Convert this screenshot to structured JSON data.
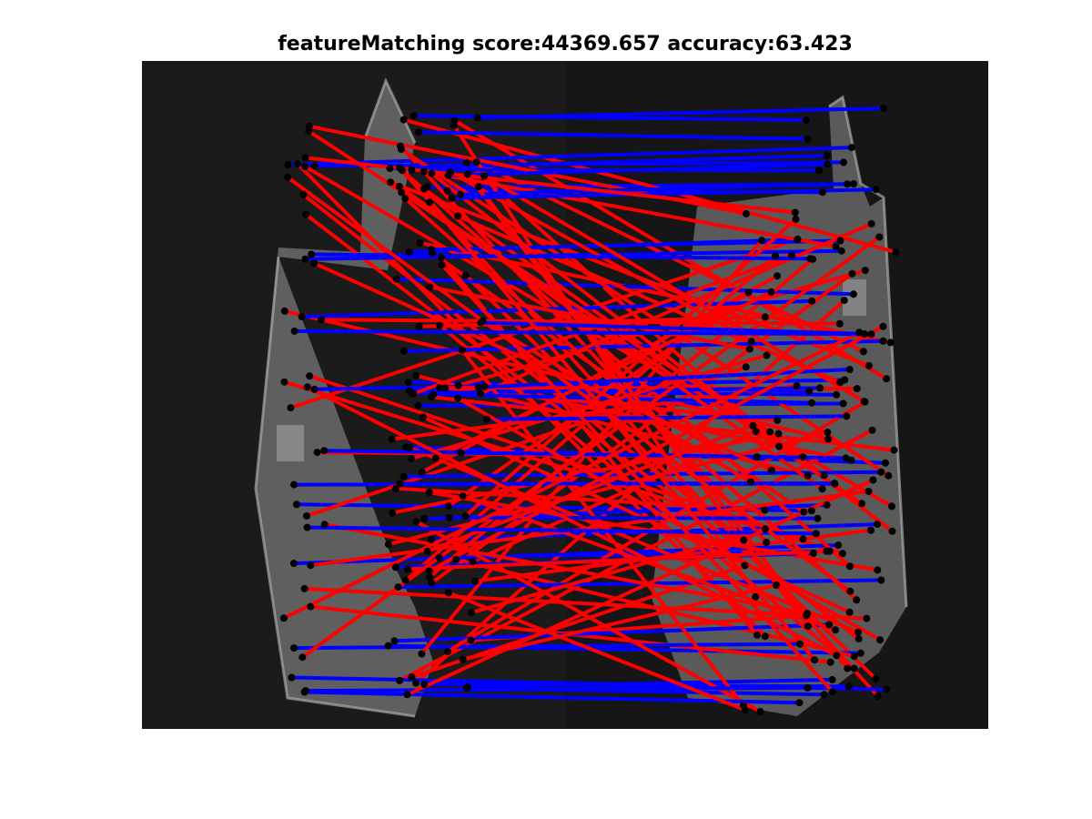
{
  "figure": {
    "title": "featureMatching score:44369.657 accuracy:63.423"
  },
  "image": {
    "description_hidden": "",
    "background": "#0f0f0f",
    "left_photo_tone": "#2a2a2a",
    "right_photo_tone": "#252525",
    "building_tone": "#777777",
    "building_edge": "#a8a8a8"
  },
  "colors": {
    "incorrect_match": "#ff0000",
    "correct_match": "#0000ff",
    "keypoint": "#000000"
  },
  "legend": null
}
